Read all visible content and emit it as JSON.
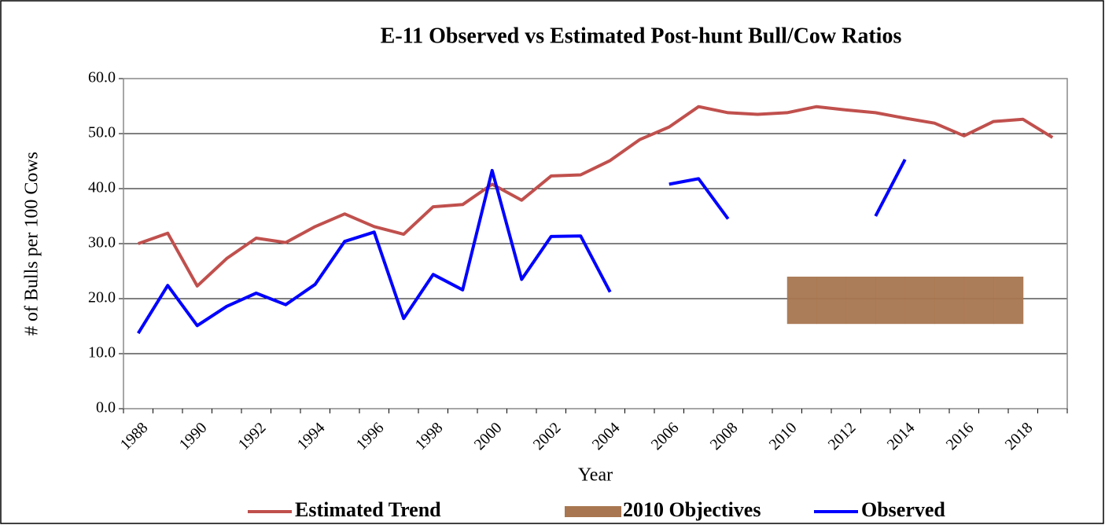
{
  "chart_data": {
    "type": "line",
    "title": "E-11 Observed vs Estimated Post-hunt Bull/Cow Ratios",
    "x_label": "Year",
    "y_label": "# of Bulls per 100 Cows",
    "categories": [
      "1988",
      null,
      "1990",
      null,
      "1992",
      null,
      "1994",
      null,
      "1996",
      null,
      "1998",
      null,
      "2000",
      null,
      "2002",
      null,
      "2004",
      null,
      "2006",
      null,
      "2008",
      null,
      "2010",
      null,
      "2012",
      null,
      "2014",
      null,
      "2016",
      null,
      "2018",
      null
    ],
    "ylim": [
      0,
      60
    ],
    "yticks": [
      {
        "value": 0,
        "label": "0.0"
      },
      {
        "value": 10,
        "label": "10.0"
      },
      {
        "value": 20,
        "label": "20.0"
      },
      {
        "value": 30,
        "label": "30.0"
      },
      {
        "value": 40,
        "label": "40.0"
      },
      {
        "value": 50,
        "label": "50.0"
      },
      {
        "value": 60,
        "label": "60.0"
      }
    ],
    "grid": true,
    "legend": "bottom",
    "series": [
      {
        "name": "Estimated Trend",
        "color": "#c0504d",
        "values": [
          30.0,
          31.9,
          22.3,
          27.3,
          31.0,
          30.2,
          33.1,
          35.4,
          33.1,
          31.7,
          36.7,
          37.1,
          40.8,
          37.9,
          42.3,
          42.5,
          45.1,
          48.9,
          51.2,
          54.9,
          53.8,
          53.5,
          53.8,
          54.9,
          54.3,
          53.8,
          52.8,
          51.9,
          49.6,
          52.2,
          52.6,
          49.3
        ]
      },
      {
        "name": "2010 Objectives",
        "color": "#a87650",
        "kind": "band",
        "values": [
          null,
          null,
          null,
          null,
          null,
          null,
          null,
          null,
          null,
          null,
          null,
          null,
          null,
          null,
          null,
          null,
          null,
          null,
          null,
          null,
          null,
          null,
          24.0,
          24.0,
          24.0,
          24.0,
          24.0,
          24.0,
          24.0,
          24.0,
          24.0,
          null
        ],
        "lower": [
          null,
          null,
          null,
          null,
          null,
          null,
          null,
          null,
          null,
          null,
          null,
          null,
          null,
          null,
          null,
          null,
          null,
          null,
          null,
          null,
          null,
          null,
          15.4,
          15.4,
          15.4,
          15.4,
          15.4,
          15.4,
          15.4,
          15.4,
          15.4,
          null
        ]
      },
      {
        "name": "Observed",
        "color": "#0000ff",
        "values": [
          13.7,
          22.4,
          15.1,
          18.6,
          21.0,
          18.9,
          22.6,
          30.4,
          32.1,
          16.4,
          24.4,
          21.6,
          43.3,
          23.5,
          31.3,
          31.4,
          21.2,
          null,
          40.8,
          41.8,
          34.5,
          null,
          null,
          null,
          null,
          35.0,
          45.3,
          null,
          null,
          null,
          null,
          null
        ]
      }
    ]
  }
}
